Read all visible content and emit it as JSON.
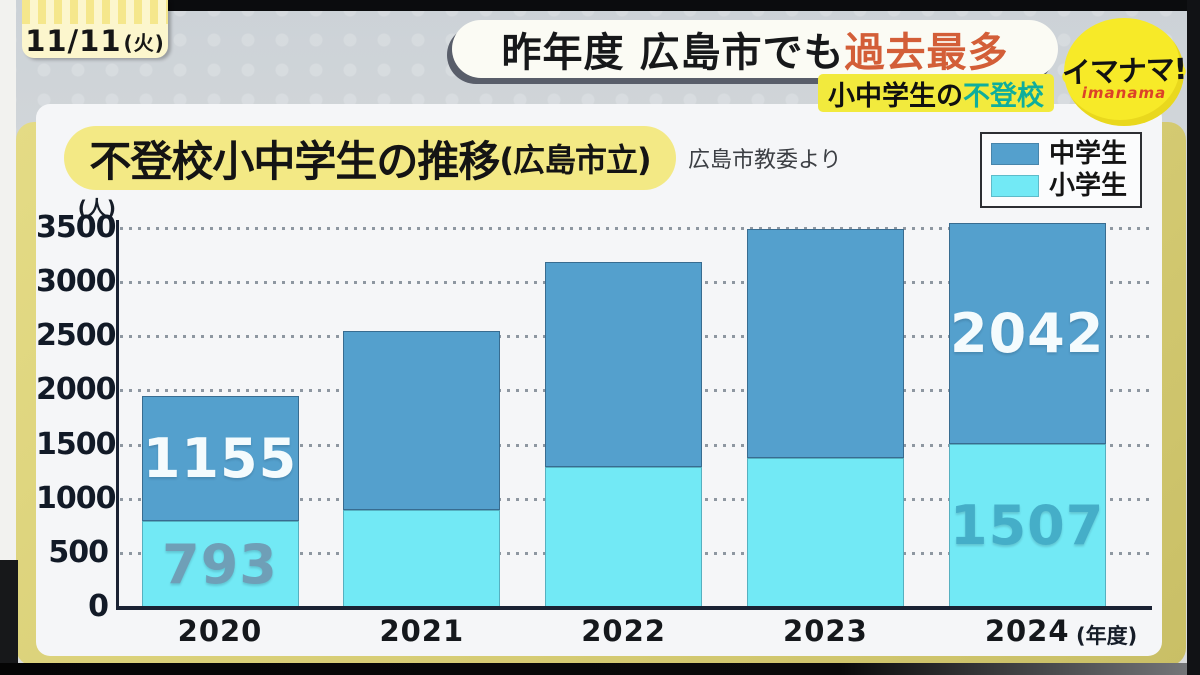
{
  "header": {
    "date": "11/11",
    "weekday": "(火)",
    "headline": {
      "prefix": "昨年度 広島市でも",
      "highlight": "過去最多"
    },
    "topic": {
      "prefix": "小中学生の",
      "highlight": "不登校"
    },
    "logo": {
      "main": "イマナマ!",
      "sub": "imanama"
    }
  },
  "chart": {
    "title": "不登校小中学生の推移",
    "title_suffix": "(広島市立)",
    "source": "広島市教委より",
    "y_unit": "(人)",
    "x_unit": "(年度)"
  },
  "chart_data": {
    "type": "bar",
    "stacked": true,
    "title": "不登校小中学生の推移(広島市立)",
    "source": "広島市教委より",
    "categories": [
      "2020",
      "2021",
      "2022",
      "2023",
      "2024"
    ],
    "series": [
      {
        "name": "小学生",
        "color": "#72e9f5",
        "values": [
          793,
          900,
          1290,
          1375,
          1507
        ],
        "labels": [
          {
            "text": "793",
            "color": "#6f9fb7"
          },
          null,
          null,
          null,
          {
            "text": "1507",
            "color": "#45aec8"
          }
        ]
      },
      {
        "name": "中学生",
        "color": "#54a0cd",
        "values": [
          1155,
          1650,
          1900,
          2115,
          2042
        ],
        "labels": [
          {
            "text": "1155",
            "color": "#f4fbfd"
          },
          null,
          null,
          null,
          {
            "text": "2042",
            "color": "#f4fbfd"
          }
        ]
      }
    ],
    "ylim": [
      0,
      3500
    ],
    "yticks": [
      0,
      500,
      1000,
      1500,
      2000,
      2500,
      3000,
      3500
    ],
    "ylabel": "(人)",
    "xlabel": "(年度)",
    "grid": "dotted-horizontal",
    "legend": [
      "中学生",
      "小学生"
    ],
    "legend_position": "top-right"
  }
}
